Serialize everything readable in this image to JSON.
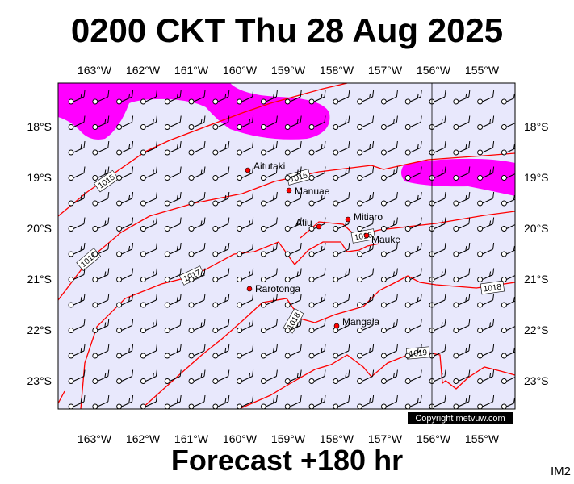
{
  "title": "0200 CKT Thu 28 Aug 2025",
  "subtitle": "Forecast +180 hr",
  "code": "IM2",
  "copyright": "Copyright metvuw.com",
  "colors": {
    "sea": "#e8e8fc",
    "rain": "#ff00ff",
    "isobar": "#ff0000",
    "island": "#ff0000"
  },
  "axes": {
    "lon_labels": [
      "163°W",
      "162°W",
      "161°W",
      "160°W",
      "159°W",
      "158°W",
      "157°W",
      "156°W",
      "155°W"
    ],
    "lat_labels": [
      "18°S",
      "19°S",
      "20°S",
      "21°S",
      "22°S",
      "23°S"
    ]
  },
  "islands": [
    {
      "name": "Aitutaki"
    },
    {
      "name": "Manuae"
    },
    {
      "name": "Mitiaro"
    },
    {
      "name": "Atiu"
    },
    {
      "name": "Mauke"
    },
    {
      "name": "Rarotonga"
    },
    {
      "name": "Mangaia"
    }
  ],
  "isobar_labels": [
    "1015",
    "1016",
    "1016",
    "1016",
    "1017",
    "1018",
    "1018",
    "1019"
  ]
}
